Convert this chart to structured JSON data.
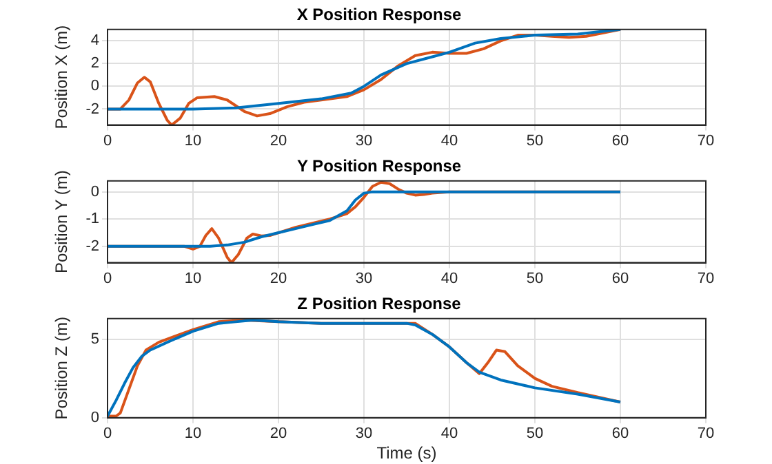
{
  "chart_data": [
    {
      "type": "line",
      "title": "X Position Response",
      "ylabel": "Position X (m)",
      "xlim": [
        0,
        70
      ],
      "xticks": [
        0,
        10,
        20,
        30,
        40,
        50,
        60,
        70
      ],
      "ylim": [
        -3.4,
        5
      ],
      "yticks": [
        -2,
        0,
        2,
        4
      ],
      "grid": true,
      "legend": false,
      "series": [
        {
          "color": "#0072bd",
          "x": [
            0,
            10,
            15,
            20,
            25,
            28.5,
            30,
            32,
            35,
            38,
            40,
            43,
            46,
            50,
            55,
            60
          ],
          "values": [
            -2,
            -2,
            -1.9,
            -1.5,
            -1.1,
            -0.6,
            0,
            1,
            2,
            2.6,
            3,
            3.8,
            4.2,
            4.5,
            4.6,
            5
          ]
        },
        {
          "color": "#d95319",
          "x": [
            0,
            1.5,
            2.5,
            3.5,
            4.3,
            5,
            6,
            7,
            7.5,
            8.5,
            9.5,
            10.5,
            12.5,
            14,
            16,
            17.5,
            19,
            21,
            23,
            25,
            28,
            30,
            32,
            34,
            36,
            38,
            40,
            42,
            44,
            46,
            48,
            50,
            52,
            54,
            56,
            58,
            60
          ],
          "values": [
            -2,
            -2,
            -1.2,
            0.3,
            0.8,
            0.4,
            -1.5,
            -3,
            -3.4,
            -2.8,
            -1.5,
            -1,
            -0.9,
            -1.2,
            -2.2,
            -2.6,
            -2.4,
            -1.8,
            -1.4,
            -1.2,
            -0.9,
            -0.3,
            0.6,
            1.8,
            2.7,
            3,
            2.9,
            2.9,
            3.3,
            4,
            4.5,
            4.5,
            4.4,
            4.3,
            4.4,
            4.7,
            5
          ]
        }
      ]
    },
    {
      "type": "line",
      "title": "Y Position Response",
      "ylabel": "Position Y (m)",
      "xlim": [
        0,
        70
      ],
      "xticks": [
        0,
        10,
        20,
        30,
        40,
        50,
        60,
        70
      ],
      "ylim": [
        -2.6,
        0.4
      ],
      "yticks": [
        -2,
        -1,
        0
      ],
      "grid": true,
      "legend": false,
      "series": [
        {
          "color": "#0072bd",
          "x": [
            0,
            10,
            12,
            14,
            16,
            18,
            20,
            22,
            24,
            26,
            28,
            29,
            30,
            31,
            60
          ],
          "values": [
            -2,
            -2,
            -2,
            -1.95,
            -1.85,
            -1.65,
            -1.5,
            -1.35,
            -1.2,
            -1.05,
            -0.7,
            -0.3,
            -0.05,
            0,
            0
          ]
        },
        {
          "color": "#d95319",
          "x": [
            0,
            9,
            10,
            10.8,
            11.5,
            12.2,
            13,
            14,
            14.5,
            15.3,
            16.3,
            17,
            18,
            19,
            20,
            22,
            24,
            26,
            28,
            29,
            30,
            31,
            32,
            33,
            34,
            35,
            36,
            37,
            38,
            40,
            60
          ],
          "values": [
            -2,
            -2,
            -2.1,
            -2,
            -1.6,
            -1.35,
            -1.7,
            -2.4,
            -2.6,
            -2.3,
            -1.7,
            -1.55,
            -1.62,
            -1.6,
            -1.5,
            -1.3,
            -1.15,
            -1,
            -0.8,
            -0.55,
            -0.2,
            0.2,
            0.35,
            0.3,
            0.1,
            -0.05,
            -0.12,
            -0.1,
            -0.05,
            0,
            0
          ]
        }
      ]
    },
    {
      "type": "line",
      "title": "Z Position Response",
      "xlabel": "Time (s)",
      "ylabel": "Position Z (m)",
      "xlim": [
        0,
        70
      ],
      "xticks": [
        0,
        10,
        20,
        30,
        40,
        50,
        60,
        70
      ],
      "ylim": [
        0,
        6.3
      ],
      "yticks": [
        0,
        5
      ],
      "grid": true,
      "legend": false,
      "series": [
        {
          "color": "#0072bd",
          "x": [
            0,
            1,
            2,
            3,
            4,
            5,
            7,
            10,
            13,
            15,
            17,
            20,
            25,
            35,
            36,
            38,
            40,
            42,
            43.5,
            46,
            50,
            55,
            60
          ],
          "values": [
            0.1,
            1.1,
            2.2,
            3.2,
            3.9,
            4.3,
            4.8,
            5.5,
            6,
            6.1,
            6.2,
            6.1,
            6,
            6,
            5.9,
            5.3,
            4.5,
            3.5,
            2.9,
            2.4,
            1.9,
            1.5,
            1
          ]
        },
        {
          "color": "#d95319",
          "x": [
            0,
            1,
            1.5,
            2.5,
            3.5,
            4.5,
            6,
            8,
            10,
            13,
            16,
            20,
            25,
            35,
            36,
            38,
            40,
            42,
            43.5,
            44.5,
            45.5,
            46.5,
            48,
            50,
            52,
            55,
            60
          ],
          "values": [
            0.1,
            0.1,
            0.3,
            1.8,
            3.3,
            4.3,
            4.8,
            5.2,
            5.6,
            6.1,
            6.2,
            6.1,
            6,
            6,
            6,
            5.3,
            4.5,
            3.5,
            2.8,
            3.5,
            4.3,
            4.2,
            3.3,
            2.5,
            2,
            1.6,
            1
          ]
        }
      ]
    }
  ]
}
